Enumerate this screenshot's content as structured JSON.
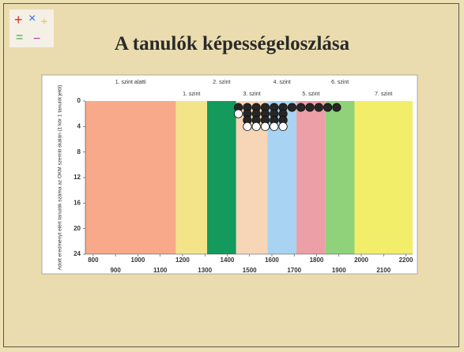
{
  "chart_data": {
    "type": "scatter",
    "title": "A tanulók képességeloszlása",
    "y_label": "Adott eredményt elért tanulók száma az OKM szerinti skálán (1 kör 1 tanulót jelöl)",
    "xlim": [
      765,
      2230
    ],
    "xticks": [
      800,
      900,
      1000,
      1100,
      1200,
      1300,
      1400,
      1500,
      1600,
      1700,
      1800,
      1900,
      2000,
      2100,
      2200
    ],
    "ylim": [
      0,
      24
    ],
    "yticks": [
      0,
      4,
      8,
      12,
      16,
      20,
      24
    ],
    "y_inverted": true,
    "levels": {
      "names": [
        "1. szint alatti",
        "1. szint",
        "2. szint",
        "3. szint",
        "4. szint",
        "5. szint",
        "6. szint",
        "7. szint"
      ],
      "edges": [
        765,
        1170,
        1310,
        1440,
        1580,
        1710,
        1840,
        1970,
        2230
      ],
      "colors": [
        "#f7a98a",
        "#f3e48a",
        "#139a5c",
        "#f6d6b6",
        "#a9d3f2",
        "#ec9fa7",
        "#8fd27a",
        "#f2ee6a"
      ]
    },
    "series": [
      {
        "color": "#262626",
        "x": [
          1450,
          1490,
          1530,
          1570,
          1610,
          1650,
          1690,
          1730,
          1770,
          1810,
          1850,
          1890,
          1490,
          1530,
          1570,
          1610,
          1650,
          1490,
          1530,
          1570,
          1610,
          1650
        ],
        "y": [
          1,
          1,
          1,
          1,
          1,
          1,
          1,
          1,
          1,
          1,
          1,
          1,
          2,
          2,
          2,
          2,
          2,
          3,
          3,
          3,
          3,
          3
        ]
      },
      {
        "color": "#ffffff",
        "x": [
          1450,
          1490,
          1530,
          1570,
          1610,
          1650
        ],
        "y": [
          2,
          4,
          4,
          4,
          4,
          4
        ]
      }
    ]
  }
}
